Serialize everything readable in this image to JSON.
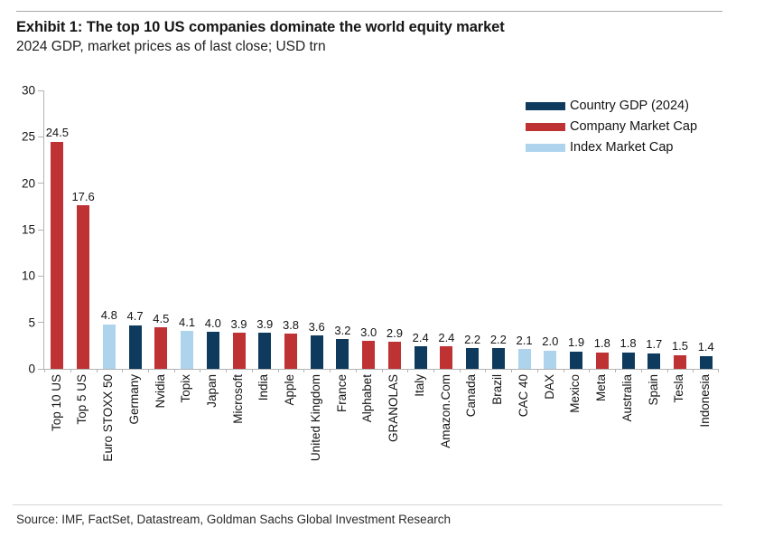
{
  "header": {
    "title": "Exhibit 1: The top 10 US companies dominate the world equity market",
    "subtitle": "2024 GDP, market prices as of last close; USD trn"
  },
  "footer": {
    "source": "Source: IMF, FactSet, Datastream, Goldman Sachs Global Investment Research"
  },
  "colors": {
    "country": "#0e3a5d",
    "company": "#be3234",
    "index": "#aed3ec",
    "axis": "#b3b3b3"
  },
  "chart_data": {
    "type": "bar",
    "title": "Exhibit 1: The top 10 US companies dominate the world equity market",
    "subtitle": "2024 GDP, market prices as of last close; USD trn",
    "unit": "USD trn",
    "ylim": [
      0,
      30
    ],
    "yticks": [
      0,
      5,
      10,
      15,
      20,
      25,
      30
    ],
    "grid": false,
    "legend_position": "upper-right",
    "legend": [
      {
        "label": "Country GDP (2024)",
        "series": "country"
      },
      {
        "label": "Company Market Cap",
        "series": "company"
      },
      {
        "label": "Index Market Cap",
        "series": "index"
      }
    ],
    "categories": [
      "Top 10 US",
      "Top 5 US",
      "Euro STOXX 50",
      "Germany",
      "Nvidia",
      "Topix",
      "Japan",
      "Microsoft",
      "India",
      "Apple",
      "United Kingdom",
      "France",
      "Alphabet",
      "GRANOLAS",
      "Italy",
      "Amazon.Com",
      "Canada",
      "Brazil",
      "CAC 40",
      "DAX",
      "Mexico",
      "Meta",
      "Australia",
      "Spain",
      "Tesla",
      "Indonesia"
    ],
    "values": [
      24.5,
      17.6,
      4.8,
      4.7,
      4.5,
      4.1,
      4.0,
      3.9,
      3.9,
      3.8,
      3.6,
      3.2,
      3.0,
      2.9,
      2.4,
      2.4,
      2.2,
      2.2,
      2.1,
      2.0,
      1.9,
      1.8,
      1.8,
      1.7,
      1.5,
      1.4
    ],
    "bar_series": [
      "company",
      "company",
      "index",
      "country",
      "company",
      "index",
      "country",
      "company",
      "country",
      "company",
      "country",
      "country",
      "company",
      "company",
      "country",
      "company",
      "country",
      "country",
      "index",
      "index",
      "country",
      "company",
      "country",
      "country",
      "company",
      "country"
    ]
  }
}
